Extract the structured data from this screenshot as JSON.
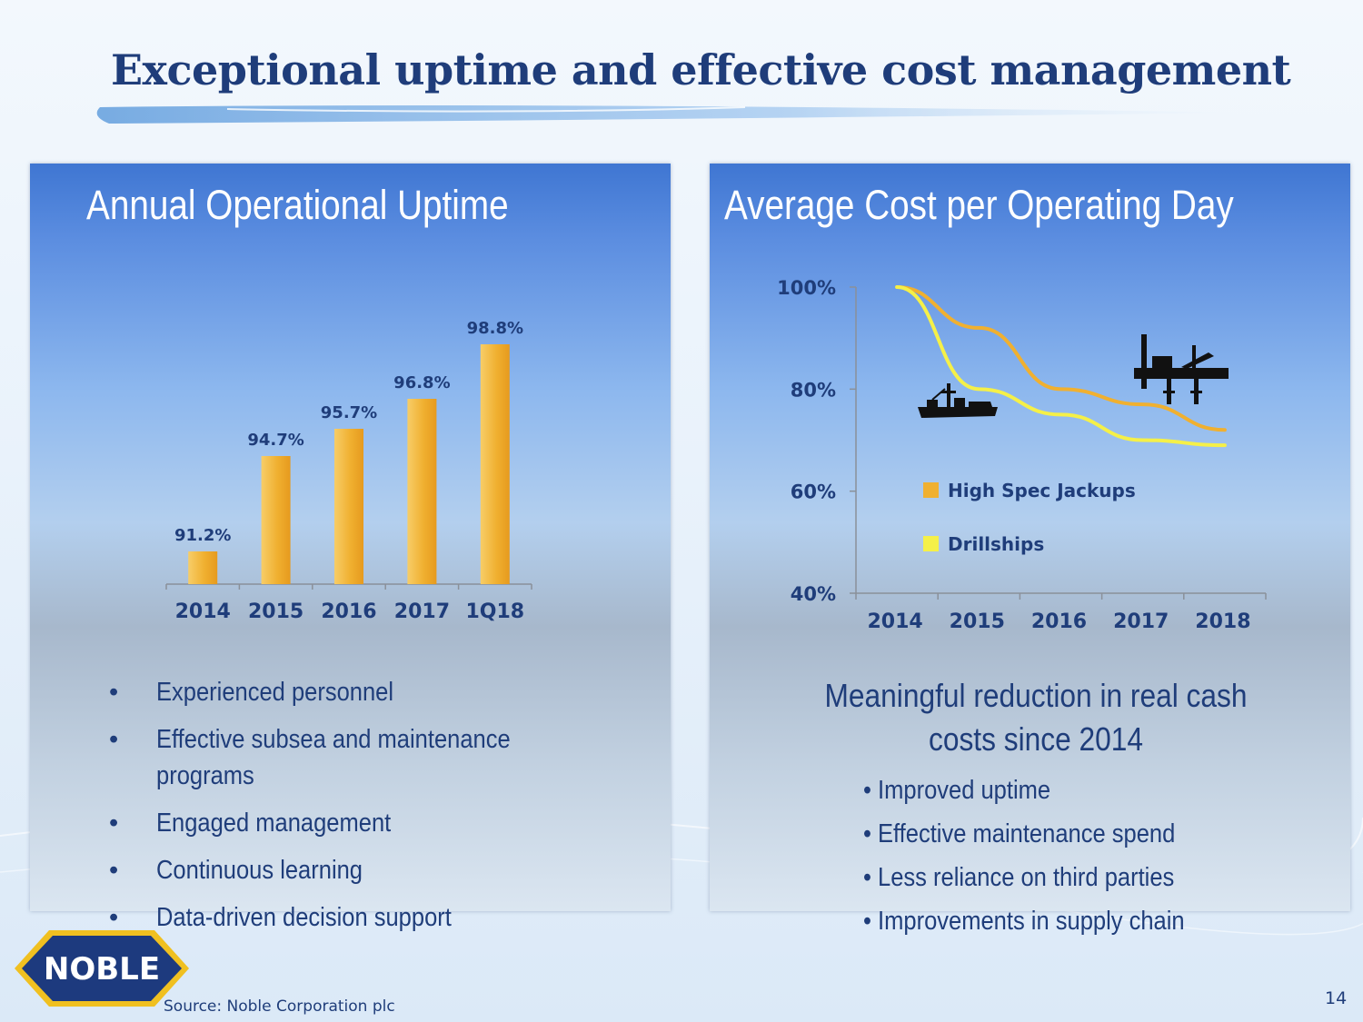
{
  "slide": {
    "title": "Exceptional uptime and effective cost management",
    "source": "Source: Noble Corporation plc",
    "page_number": "14",
    "logo_text": "NOBLE"
  },
  "left_panel": {
    "title": "Annual Operational Uptime",
    "bullets": [
      "Experienced personnel",
      "Effective subsea and maintenance programs",
      "Engaged management",
      "Continuous learning",
      "Data-driven decision support"
    ]
  },
  "right_panel": {
    "title": "Average Cost per Operating Day",
    "headline": "Meaningful reduction in real cash costs since 2014",
    "points": [
      "• Improved uptime",
      "• Effective maintenance spend",
      "• Less reliance on third parties",
      "• Improvements in supply chain"
    ]
  },
  "chart_data": [
    {
      "type": "bar",
      "title": "Annual Operational Uptime",
      "categories": [
        "2014",
        "2015",
        "2016",
        "2017",
        "1Q18"
      ],
      "values": [
        91.2,
        94.7,
        95.7,
        96.8,
        98.8
      ],
      "data_labels": [
        "91.2%",
        "94.7%",
        "95.7%",
        "96.8%",
        "98.8%"
      ],
      "ylim": [
        90,
        100
      ],
      "bar_color": "#f0b030"
    },
    {
      "type": "line",
      "title": "Average Cost per Operating Day",
      "x": [
        "2014",
        "2015",
        "2016",
        "2017",
        "2018"
      ],
      "yticks": [
        "100%",
        "80%",
        "60%",
        "40%"
      ],
      "ylim": [
        40,
        100
      ],
      "series": [
        {
          "name": "High Spec Jackups",
          "color": "#f0b030",
          "values": [
            100,
            92,
            80,
            77,
            72
          ]
        },
        {
          "name": "Drillships",
          "color": "#f5f048",
          "values": [
            100,
            80,
            75,
            70,
            69
          ]
        }
      ],
      "legend": "inside",
      "icons": [
        "drillship-icon",
        "jackup-rig-icon"
      ]
    }
  ]
}
